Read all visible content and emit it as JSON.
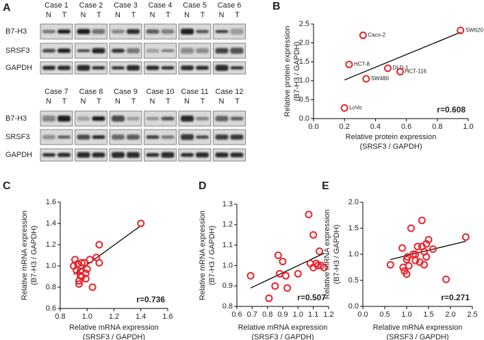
{
  "blot": {
    "panel": "A",
    "rows": [
      "B7-H3",
      "SRSF3",
      "GAPDH"
    ],
    "lanes": [
      "N",
      "T"
    ],
    "groups": [
      {
        "cases": [
          "Case 1",
          "Case 2",
          "Case 3",
          "Case 4",
          "Case 5",
          "Case 6"
        ]
      },
      {
        "cases": [
          "Case 7",
          "Case 8",
          "Case 9",
          "Case 10",
          "Case 11",
          "Case 12"
        ]
      }
    ]
  },
  "chart_data": [
    {
      "type": "scatter",
      "panel": "B",
      "color": "#e8232a",
      "xlabel": [
        "Relative protein expression",
        "(SRSF3 / GAPDH)"
      ],
      "ylabel": [
        "Relative protein expression",
        "(B7-H3 / GAPDH)"
      ],
      "annotation": "r=0.608",
      "x": [
        0.32,
        0.95,
        0.23,
        0.48,
        0.56,
        0.34,
        0.2
      ],
      "values": [
        2.2,
        2.33,
        1.43,
        1.33,
        1.24,
        1.05,
        0.28
      ],
      "point_labels": [
        "Caco-2",
        "SW620",
        "HCT-8",
        "DLD-1",
        "HCT-116",
        "SW480",
        "LoVo"
      ],
      "fit": {
        "x": [
          0.2,
          0.95
        ],
        "values": [
          1.02,
          2.28
        ]
      },
      "xlim": [
        0,
        1
      ],
      "xticks": [
        {
          "value": 0,
          "label": "0.0"
        },
        0.2,
        0.4,
        0.6,
        0.8,
        {
          "value": 1,
          "label": "1.0"
        }
      ],
      "ylim": [
        0,
        2.5
      ],
      "yticks": [
        {
          "value": 0,
          "label": "0.0"
        },
        0.5,
        {
          "value": 1,
          "label": "1.0"
        },
        1.5,
        {
          "value": 2,
          "label": "2.0"
        },
        2.5
      ]
    },
    {
      "type": "scatter",
      "panel": "C",
      "color": "#e8232a",
      "xlabel": [
        "Relative mRNA expression",
        "(SRSF3 / GAPDH)"
      ],
      "ylabel": [
        "Relative mRNA expression",
        "(B7-H3 / GAPDH)"
      ],
      "annotation": "r=0.736",
      "x": [
        0.9,
        0.91,
        0.92,
        0.93,
        0.94,
        0.94,
        0.95,
        0.96,
        0.96,
        0.98,
        0.99,
        1.0,
        1.02,
        1.04,
        1.07,
        1.09,
        1.09,
        1.4,
        0.95,
        0.99
      ],
      "values": [
        1.0,
        1.06,
        0.96,
        1.02,
        0.83,
        0.86,
        0.95,
        1.03,
        0.9,
        1.03,
        0.93,
        0.97,
        1.06,
        0.8,
        1.08,
        1.2,
        1.03,
        1.4,
        0.91,
        0.88
      ],
      "fit": {
        "x": [
          0.9,
          1.4
        ],
        "values": [
          0.92,
          1.38
        ]
      },
      "xlim": [
        0.8,
        1.6
      ],
      "xticks": [
        0.8,
        {
          "value": 1,
          "label": "1.0"
        },
        1.2,
        1.4,
        1.6
      ],
      "ylim": [
        0.6,
        1.6
      ],
      "yticks": [
        0.6,
        0.8,
        {
          "value": 1,
          "label": "1.0"
        },
        1.2,
        1.4,
        1.6
      ]
    },
    {
      "type": "scatter",
      "panel": "D",
      "color": "#e8232a",
      "xlabel": [
        "Relative mRNA expression",
        "(SRSF3 / GAPDH)"
      ],
      "ylabel": [
        "Relative mRNA expression",
        "(B7-H3 / GAPDH)"
      ],
      "annotation": "r=0.507",
      "x": [
        0.69,
        0.81,
        0.85,
        0.87,
        0.88,
        0.9,
        0.92,
        0.93,
        1.0,
        1.07,
        1.08,
        1.1,
        1.12,
        1.13,
        1.14,
        1.15,
        1.17,
        1.1
      ],
      "values": [
        0.95,
        0.84,
        0.9,
        1.05,
        0.96,
        1.02,
        0.95,
        0.89,
        0.96,
        1.25,
        1.01,
        1.15,
        1.01,
        1.0,
        1.07,
        1.0,
        0.99,
        0.99
      ],
      "fit": {
        "x": [
          0.69,
          1.17
        ],
        "values": [
          0.89,
          1.06
        ]
      },
      "xlim": [
        0.6,
        1.2
      ],
      "xticks": [
        0.6,
        0.7,
        0.8,
        0.9,
        {
          "value": 1,
          "label": "1.0"
        },
        1.1,
        1.2
      ],
      "ylim": [
        0.8,
        1.3
      ],
      "yticks": [
        0.8,
        0.9,
        {
          "value": 1,
          "label": "1.0"
        },
        1.1,
        1.2,
        1.3
      ]
    },
    {
      "type": "scatter",
      "panel": "E",
      "color": "#e8232a",
      "xlabel": [
        "Relative mRNA expression",
        "(SRSF3 / GAPDH)"
      ],
      "ylabel": [
        "Relative mRNA expression",
        "(B7-H3 / GAPDH)"
      ],
      "annotation": "r=0.271",
      "x": [
        0.63,
        0.9,
        0.92,
        0.95,
        1.0,
        1.0,
        1.02,
        1.05,
        1.1,
        1.15,
        1.2,
        1.25,
        1.3,
        1.35,
        1.35,
        1.4,
        1.4,
        1.45,
        1.45,
        1.5,
        1.6,
        1.9,
        2.35,
        1.2
      ],
      "values": [
        0.8,
        1.12,
        0.75,
        0.68,
        0.62,
        0.9,
        0.95,
        0.78,
        1.5,
        1.0,
        0.88,
        1.15,
        0.85,
        1.65,
        1.15,
        1.05,
        0.8,
        1.2,
        0.95,
        1.28,
        1.1,
        0.52,
        1.33,
        1.0
      ],
      "fit": {
        "x": [
          0.63,
          2.35
        ],
        "values": [
          0.9,
          1.25
        ]
      },
      "xlim": [
        0,
        2.5
      ],
      "xticks": [
        {
          "value": 0,
          "label": "0.0"
        },
        0.5,
        {
          "value": 1,
          "label": "1.0"
        },
        1.5,
        {
          "value": 2,
          "label": "2.0"
        },
        2.5
      ],
      "ylim": [
        0,
        2
      ],
      "yticks": [
        {
          "value": 0,
          "label": "0.0"
        },
        0.5,
        {
          "value": 1,
          "label": "1.0"
        },
        1.5,
        {
          "value": 2,
          "label": "2.0"
        }
      ]
    }
  ]
}
